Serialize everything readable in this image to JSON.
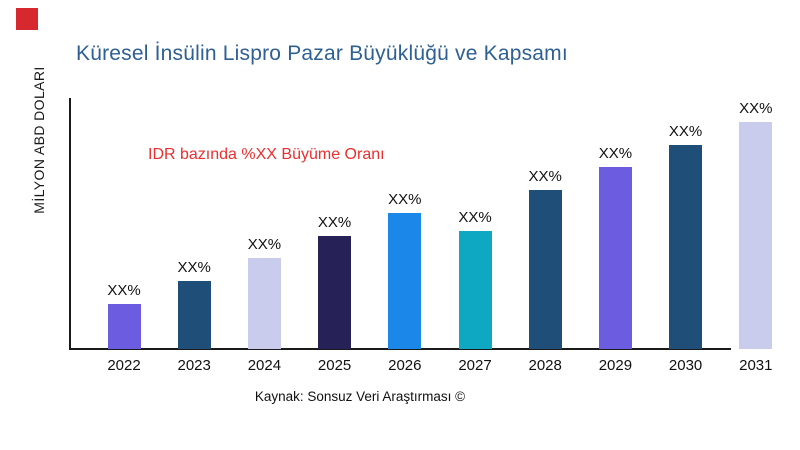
{
  "colors": {
    "logo": "#d7282f",
    "title": "#2e6093",
    "annotation": "#ea2f2f",
    "axis": "#1a1a1a",
    "text": "#111111"
  },
  "chart_data": {
    "type": "bar",
    "title": "Küresel İnsülin Lispro Pazar Büyüklüğü ve Kapsamı",
    "ylabel": "MİLYON ABD DOLARI",
    "xlabel": "",
    "annotation": "IDR bazında %XX Büyüme Oranı",
    "source": "Kaynak: Sonsuz Veri Araştırması ©",
    "categories": [
      "2022",
      "2023",
      "2024",
      "2025",
      "2026",
      "2027",
      "2028",
      "2029",
      "2030",
      "2031"
    ],
    "values": [
      20,
      30,
      40,
      50,
      60,
      52,
      70,
      80,
      90,
      100
    ],
    "value_labels": [
      "XX%",
      "XX%",
      "XX%",
      "XX%",
      "XX%",
      "XX%",
      "XX%",
      "XX%",
      "XX%",
      "XX%"
    ],
    "bar_colors": [
      "#6b5ce0",
      "#1f4e79",
      "#c9cced",
      "#262157",
      "#1b87e8",
      "#0ea8c2",
      "#1f4e79",
      "#6b5ce0",
      "#1f4e79",
      "#c9cced"
    ],
    "grid": false,
    "legend": false,
    "ylim": [
      0,
      110
    ]
  }
}
